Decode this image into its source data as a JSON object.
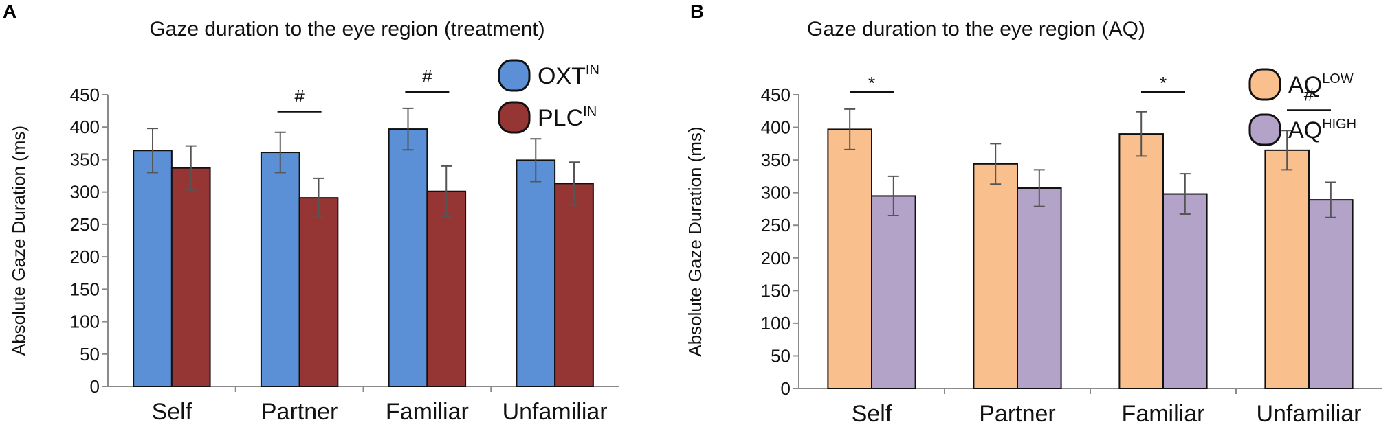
{
  "chart_data": [
    {
      "type": "bar",
      "panel": "A",
      "title": "Gaze duration to the eye region (treatment)",
      "xlabel": "",
      "ylabel": "Absolute Gaze Duration (ms)",
      "ylim": [
        0,
        450
      ],
      "yticks": [
        0,
        50,
        100,
        150,
        200,
        250,
        300,
        350,
        400,
        450
      ],
      "categories": [
        "Self",
        "Partner",
        "Familiar",
        "Unfamiliar"
      ],
      "series": [
        {
          "name": "OXT",
          "sup": "IN",
          "color": "#5b8fd6",
          "values": [
            364,
            361,
            397,
            349
          ],
          "errors": [
            34,
            31,
            32,
            33
          ]
        },
        {
          "name": "PLC",
          "sup": "IN",
          "color": "#963634",
          "values": [
            337,
            291,
            301,
            313
          ],
          "errors": [
            34,
            30,
            39,
            33
          ]
        }
      ],
      "significance": [
        {
          "category": "Partner",
          "symbol": "#"
        },
        {
          "category": "Familiar",
          "symbol": "#"
        }
      ],
      "legend": "top-right"
    },
    {
      "type": "bar",
      "panel": "B",
      "title": "Gaze duration to the eye region (AQ)",
      "xlabel": "",
      "ylabel": "Absolute Gaze Duration (ms)",
      "ylim": [
        0,
        450
      ],
      "yticks": [
        0,
        50,
        100,
        150,
        200,
        250,
        300,
        350,
        400,
        450
      ],
      "categories": [
        "Self",
        "Partner",
        "Familiar",
        "Unfamiliar"
      ],
      "series": [
        {
          "name": "AQ",
          "sup": "LOW",
          "color": "#f9c08d",
          "values": [
            397,
            344,
            390,
            365
          ],
          "errors": [
            31,
            31,
            34,
            30
          ]
        },
        {
          "name": "AQ",
          "sup": "HIGH",
          "color": "#b4a3c9",
          "values": [
            295,
            307,
            298,
            289
          ],
          "errors": [
            30,
            28,
            31,
            27
          ]
        }
      ],
      "significance": [
        {
          "category": "Self",
          "symbol": "*"
        },
        {
          "category": "Familiar",
          "symbol": "*"
        },
        {
          "category": "Unfamiliar",
          "symbol": "#"
        }
      ],
      "legend": "top-right"
    }
  ]
}
